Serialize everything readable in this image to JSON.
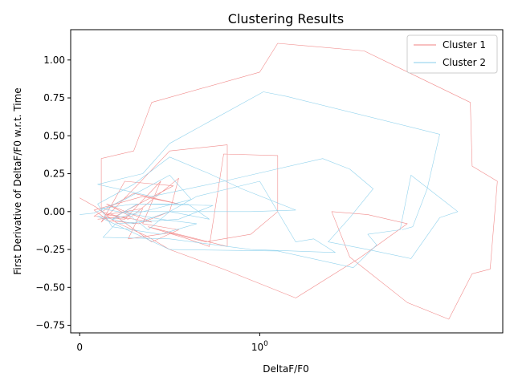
{
  "chart_data": {
    "type": "line",
    "title": "Clustering Results",
    "xlabel": "DeltaF/F0",
    "ylabel": "First Derivative of DeltaF/F0 w.r.t. Time",
    "xscale": "symlog",
    "xlim": [
      -0.05,
      2.35
    ],
    "ylim": [
      -0.8,
      1.2
    ],
    "x_ticks": [
      {
        "value": 0,
        "label": "0"
      },
      {
        "value": 1,
        "label": "10^0"
      }
    ],
    "y_ticks": [
      {
        "value": -0.75,
        "label": "−0.75"
      },
      {
        "value": -0.5,
        "label": "−0.50"
      },
      {
        "value": -0.25,
        "label": "−0.25"
      },
      {
        "value": 0.0,
        "label": "0.00"
      },
      {
        "value": 0.25,
        "label": "0.25"
      },
      {
        "value": 0.5,
        "label": "0.50"
      },
      {
        "value": 0.75,
        "label": "0.75"
      },
      {
        "value": 1.0,
        "label": "1.00"
      }
    ],
    "grid": false,
    "legend_position": "upper right",
    "series": [
      {
        "name": "Cluster 1",
        "color": "#f08080",
        "points": [
          [
            0.0,
            0.09
          ],
          [
            0.09,
            0.03
          ],
          [
            0.2,
            -0.07
          ],
          [
            0.37,
            -0.16
          ],
          [
            0.5,
            -0.25
          ],
          [
            0.8,
            -0.38
          ],
          [
            1.2,
            -0.57
          ],
          [
            1.55,
            -0.31
          ],
          [
            1.82,
            -0.08
          ],
          [
            1.6,
            -0.02
          ],
          [
            1.4,
            0.0
          ],
          [
            1.5,
            -0.3
          ],
          [
            1.82,
            -0.6
          ],
          [
            2.05,
            -0.71
          ],
          [
            2.18,
            -0.41
          ],
          [
            2.28,
            -0.38
          ],
          [
            2.32,
            0.2
          ],
          [
            2.18,
            0.3
          ],
          [
            2.17,
            0.72
          ],
          [
            1.58,
            1.06
          ],
          [
            1.1,
            1.11
          ],
          [
            1.0,
            0.92
          ],
          [
            0.4,
            0.72
          ],
          [
            0.3,
            0.4
          ],
          [
            0.12,
            0.35
          ],
          [
            0.12,
            0.0
          ],
          [
            0.27,
            -0.05
          ],
          [
            0.55,
            0.22
          ],
          [
            0.5,
            0.0
          ],
          [
            0.33,
            -0.08
          ],
          [
            0.16,
            -0.06
          ],
          [
            0.08,
            0.01
          ],
          [
            0.35,
            0.1
          ],
          [
            0.55,
            0.05
          ],
          [
            0.3,
            0.12
          ],
          [
            0.08,
            -0.03
          ],
          [
            0.25,
            -0.05
          ],
          [
            0.45,
            0.2
          ],
          [
            0.35,
            -0.08
          ],
          [
            0.55,
            -0.12
          ],
          [
            0.4,
            -0.2
          ],
          [
            0.2,
            -0.03
          ],
          [
            0.52,
            0.17
          ],
          [
            0.25,
            0.2
          ],
          [
            0.18,
            0.05
          ],
          [
            0.12,
            -0.07
          ],
          [
            0.3,
            0.15
          ],
          [
            0.5,
            0.4
          ],
          [
            0.82,
            0.44
          ],
          [
            0.82,
            -0.23
          ],
          [
            0.38,
            -0.1
          ],
          [
            0.6,
            -0.18
          ],
          [
            0.72,
            -0.23
          ],
          [
            0.8,
            0.38
          ],
          [
            1.1,
            0.37
          ],
          [
            1.1,
            0.0
          ],
          [
            0.95,
            -0.15
          ],
          [
            0.7,
            -0.2
          ],
          [
            0.5,
            -0.14
          ],
          [
            0.27,
            -0.18
          ],
          [
            0.35,
            0.02
          ],
          [
            0.15,
            -0.02
          ],
          [
            0.4,
            -0.07
          ],
          [
            0.15,
            0.05
          ],
          [
            0.28,
            -0.03
          ],
          [
            0.1,
            -0.05
          ]
        ]
      },
      {
        "name": "Cluster 2",
        "color": "#87ceeb",
        "points": [
          [
            0.0,
            -0.02
          ],
          [
            0.08,
            -0.01
          ],
          [
            0.25,
            0.08
          ],
          [
            0.5,
            0.24
          ],
          [
            0.62,
            0.08
          ],
          [
            0.42,
            0.02
          ],
          [
            0.18,
            -0.05
          ],
          [
            0.32,
            0.05
          ],
          [
            0.74,
            0.04
          ],
          [
            0.55,
            -0.05
          ],
          [
            0.2,
            -0.08
          ],
          [
            0.13,
            -0.17
          ],
          [
            0.5,
            -0.18
          ],
          [
            0.95,
            -0.25
          ],
          [
            1.42,
            -0.27
          ],
          [
            1.3,
            -0.18
          ],
          [
            1.2,
            -0.2
          ],
          [
            1.0,
            0.2
          ],
          [
            0.65,
            0.1
          ],
          [
            0.5,
            0.0
          ],
          [
            0.38,
            -0.12
          ],
          [
            0.25,
            0.0
          ],
          [
            0.5,
            0.0
          ],
          [
            0.72,
            -0.05
          ],
          [
            0.6,
            0.05
          ],
          [
            0.3,
            0.05
          ],
          [
            0.12,
            0.02
          ],
          [
            0.45,
            -0.05
          ],
          [
            0.65,
            -0.08
          ],
          [
            0.45,
            -0.15
          ],
          [
            0.18,
            -0.1
          ],
          [
            0.1,
            0.05
          ],
          [
            0.3,
            0.18
          ],
          [
            0.5,
            0.36
          ],
          [
            0.72,
            0.25
          ],
          [
            0.9,
            0.15
          ],
          [
            1.2,
            0.01
          ],
          [
            0.95,
            0.0
          ],
          [
            0.5,
            0.0
          ],
          [
            0.3,
            -0.08
          ],
          [
            0.1,
            -0.03
          ],
          [
            0.5,
            -0.25
          ],
          [
            1.1,
            -0.26
          ],
          [
            1.52,
            -0.37
          ],
          [
            1.65,
            -0.22
          ],
          [
            1.6,
            -0.15
          ],
          [
            1.78,
            -0.12
          ],
          [
            1.84,
            0.24
          ],
          [
            2.1,
            0.0
          ],
          [
            2.0,
            -0.04
          ],
          [
            1.84,
            -0.31
          ],
          [
            1.6,
            -0.25
          ],
          [
            1.38,
            -0.2
          ],
          [
            1.5,
            -0.04
          ],
          [
            1.63,
            0.15
          ],
          [
            1.5,
            0.28
          ],
          [
            1.35,
            0.35
          ],
          [
            0.8,
            0.2
          ],
          [
            0.4,
            0.1
          ],
          [
            0.1,
            0.18
          ],
          [
            0.35,
            0.25
          ],
          [
            0.5,
            0.45
          ],
          [
            1.02,
            0.79
          ],
          [
            1.15,
            0.76
          ],
          [
            2.0,
            0.51
          ],
          [
            1.93,
            0.15
          ],
          [
            1.85,
            -0.1
          ],
          [
            1.79,
            -0.12
          ]
        ]
      }
    ]
  }
}
